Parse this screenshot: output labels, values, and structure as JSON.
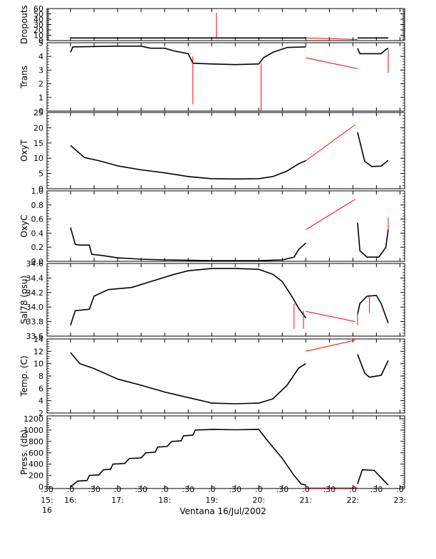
{
  "chart_data": {
    "type": "line",
    "xlabel": "Ventana 16/Jul/2002",
    "x_ticks": [
      {
        "t": 15.5,
        "top": ":30",
        "mid": "15:",
        "bot": "16"
      },
      {
        "t": 16.0,
        "top": ":0",
        "mid": "16:",
        "bot": ""
      },
      {
        "t": 16.5,
        "top": ":30",
        "mid": "",
        "bot": ""
      },
      {
        "t": 17.0,
        "top": ":0",
        "mid": "17:",
        "bot": ""
      },
      {
        "t": 17.5,
        "top": ":30",
        "mid": "",
        "bot": ""
      },
      {
        "t": 18.0,
        "top": ":0",
        "mid": "18:",
        "bot": ""
      },
      {
        "t": 18.5,
        "top": ":30",
        "mid": "",
        "bot": ""
      },
      {
        "t": 19.0,
        "top": ":0",
        "mid": "19:",
        "bot": ""
      },
      {
        "t": 19.5,
        "top": ":30",
        "mid": "",
        "bot": ""
      },
      {
        "t": 20.0,
        "top": ":0",
        "mid": "20:",
        "bot": ""
      },
      {
        "t": 20.5,
        "top": ":30",
        "mid": "",
        "bot": ""
      },
      {
        "t": 21.0,
        "top": ":0",
        "mid": "21:",
        "bot": ""
      },
      {
        "t": 21.5,
        "top": ":30",
        "mid": "",
        "bot": ""
      },
      {
        "t": 22.0,
        "top": ":0",
        "mid": "22:",
        "bot": ""
      },
      {
        "t": 22.5,
        "top": ":30",
        "mid": "",
        "bot": ""
      },
      {
        "t": 23.0,
        "top": ":0",
        "mid": "23:",
        "bot": ""
      }
    ],
    "xlim": [
      15.5,
      23.1
    ],
    "colors": {
      "data": "#000000",
      "interp": "#ff0000"
    },
    "panels": [
      {
        "id": "dropouts",
        "ylabel": "Dropouts",
        "ylim": [
          0,
          60
        ],
        "yticks": [
          0,
          10,
          20,
          30,
          40,
          50,
          60
        ],
        "segments": [
          [
            [
              16.0,
              5
            ],
            [
              21.0,
              5
            ]
          ],
          [
            [
              22.1,
              5
            ],
            [
              22.75,
              5
            ]
          ]
        ],
        "interp": [
          [
            [
              21.0,
              5
            ],
            [
              22.1,
              2
            ]
          ]
        ],
        "spikes": [
          [
            19.1,
            5,
            52
          ]
        ]
      },
      {
        "id": "trans",
        "ylabel": "Trans",
        "ylim": [
          0,
          5
        ],
        "yticks": [
          0,
          1,
          2,
          3,
          4,
          5
        ],
        "segments": [
          [
            [
              16.0,
              4.3
            ],
            [
              16.05,
              4.7
            ],
            [
              17.0,
              4.75
            ],
            [
              17.5,
              4.75
            ],
            [
              17.7,
              4.6
            ],
            [
              18.0,
              4.6
            ],
            [
              18.2,
              4.4
            ],
            [
              18.5,
              4.2
            ],
            [
              18.6,
              3.5
            ],
            [
              19.0,
              3.45
            ],
            [
              19.5,
              3.4
            ],
            [
              20.0,
              3.45
            ],
            [
              20.1,
              3.9
            ],
            [
              20.3,
              4.3
            ],
            [
              20.6,
              4.65
            ],
            [
              21.0,
              4.7
            ]
          ],
          [
            [
              22.1,
              4.6
            ],
            [
              22.15,
              4.2
            ],
            [
              22.6,
              4.2
            ],
            [
              22.7,
              4.5
            ],
            [
              22.75,
              4.6
            ]
          ]
        ],
        "interp": [
          [
            [
              21.0,
              3.9
            ],
            [
              22.1,
              3.1
            ]
          ]
        ],
        "spikes": [
          [
            18.6,
            4.0,
            0.5
          ],
          [
            20.05,
            3.5,
            0.0
          ],
          [
            22.75,
            4.5,
            2.8
          ]
        ]
      },
      {
        "id": "oxyt",
        "ylabel": "OxyT",
        "ylim": [
          0,
          25
        ],
        "yticks": [
          0,
          5,
          10,
          15,
          20,
          25
        ],
        "segments": [
          [
            [
              16.0,
              14.2
            ],
            [
              16.3,
              10.2
            ],
            [
              16.6,
              9.2
            ],
            [
              17.0,
              7.5
            ],
            [
              17.5,
              6.2
            ],
            [
              18.0,
              5.2
            ],
            [
              18.5,
              4.0
            ],
            [
              19.0,
              3.3
            ],
            [
              19.5,
              3.2
            ],
            [
              20.0,
              3.3
            ],
            [
              20.3,
              4.0
            ],
            [
              20.6,
              5.8
            ],
            [
              20.85,
              8.2
            ],
            [
              21.0,
              9.2
            ]
          ],
          [
            [
              22.1,
              18.5
            ],
            [
              22.25,
              9.0
            ],
            [
              22.4,
              7.3
            ],
            [
              22.6,
              7.4
            ],
            [
              22.75,
              9.3
            ]
          ]
        ],
        "interp": [
          [
            [
              21.0,
              9.2
            ],
            [
              22.05,
              21.0
            ]
          ]
        ],
        "spikes": []
      },
      {
        "id": "oxyc",
        "ylabel": "OxyC",
        "ylim": [
          0,
          1.0
        ],
        "yticks": [
          0.0,
          0.2,
          0.4,
          0.6,
          0.8,
          1.0
        ],
        "ytick_labels": [
          "0.0",
          "0.2",
          "0.4",
          "0.6",
          "0.8",
          "1.0"
        ],
        "segments": [
          [
            [
              16.0,
              0.48
            ],
            [
              16.1,
              0.24
            ],
            [
              16.2,
              0.23
            ],
            [
              16.4,
              0.23
            ],
            [
              16.45,
              0.1
            ],
            [
              16.7,
              0.08
            ],
            [
              17.0,
              0.05
            ],
            [
              17.5,
              0.03
            ],
            [
              18.0,
              0.02
            ],
            [
              19.0,
              0.01
            ],
            [
              20.0,
              0.01
            ],
            [
              20.5,
              0.02
            ],
            [
              20.75,
              0.06
            ],
            [
              20.85,
              0.17
            ],
            [
              21.0,
              0.26
            ]
          ],
          [
            [
              22.1,
              0.55
            ],
            [
              22.15,
              0.15
            ],
            [
              22.3,
              0.06
            ],
            [
              22.55,
              0.06
            ],
            [
              22.7,
              0.2
            ],
            [
              22.75,
              0.45
            ]
          ]
        ],
        "interp": [
          [
            [
              21.0,
              0.45
            ],
            [
              22.05,
              0.88
            ]
          ]
        ],
        "spikes": [
          [
            22.75,
            0.45,
            0.62
          ]
        ]
      },
      {
        "id": "sal78",
        "ylabel": "Sal78 (psu)",
        "ylim": [
          33.6,
          34.6
        ],
        "yticks": [
          33.6,
          33.8,
          34.0,
          34.2,
          34.4,
          34.6
        ],
        "ytick_labels": [
          "33.6",
          "33.8",
          "34.0",
          "34.2",
          "34.4",
          "34.6"
        ],
        "segments": [
          [
            [
              16.0,
              33.75
            ],
            [
              16.1,
              33.95
            ],
            [
              16.4,
              33.97
            ],
            [
              16.5,
              34.15
            ],
            [
              16.8,
              34.24
            ],
            [
              17.3,
              34.27
            ],
            [
              17.7,
              34.35
            ],
            [
              18.2,
              34.45
            ],
            [
              18.5,
              34.5
            ],
            [
              19.0,
              34.53
            ],
            [
              19.5,
              34.53
            ],
            [
              20.0,
              34.52
            ],
            [
              20.3,
              34.45
            ],
            [
              20.5,
              34.35
            ],
            [
              20.7,
              34.15
            ],
            [
              20.85,
              33.98
            ],
            [
              21.0,
              33.85
            ]
          ],
          [
            [
              22.1,
              33.9
            ],
            [
              22.15,
              34.05
            ],
            [
              22.3,
              34.15
            ],
            [
              22.5,
              34.16
            ],
            [
              22.6,
              34.05
            ],
            [
              22.75,
              33.78
            ]
          ]
        ],
        "interp": [
          [
            [
              21.0,
              33.94
            ],
            [
              22.05,
              33.8
            ]
          ]
        ],
        "spikes": [
          [
            20.75,
            34.05,
            33.7
          ],
          [
            20.95,
            33.95,
            33.7
          ],
          [
            22.35,
            34.17,
            33.92
          ],
          [
            22.1,
            33.92,
            33.75
          ]
        ]
      },
      {
        "id": "temp",
        "ylabel": "Temp. (C)",
        "ylim": [
          2,
          14
        ],
        "yticks": [
          2,
          4,
          6,
          8,
          10,
          12,
          14
        ],
        "segments": [
          [
            [
              16.0,
              11.8
            ],
            [
              16.2,
              10.0
            ],
            [
              16.5,
              9.2
            ],
            [
              17.0,
              7.5
            ],
            [
              17.5,
              6.5
            ],
            [
              18.0,
              5.4
            ],
            [
              18.5,
              4.5
            ],
            [
              18.9,
              3.8
            ],
            [
              19.0,
              3.6
            ],
            [
              19.5,
              3.5
            ],
            [
              20.0,
              3.6
            ],
            [
              20.3,
              4.3
            ],
            [
              20.6,
              6.5
            ],
            [
              20.85,
              9.3
            ],
            [
              21.0,
              10.0
            ]
          ],
          [
            [
              22.1,
              11.5
            ],
            [
              22.25,
              8.5
            ],
            [
              22.35,
              7.8
            ],
            [
              22.6,
              8.1
            ],
            [
              22.75,
              10.5
            ]
          ]
        ],
        "interp": [
          [
            [
              21.0,
              12.0
            ],
            [
              22.05,
              13.8
            ]
          ]
        ],
        "spikes": []
      },
      {
        "id": "press",
        "ylabel": "Press. (db)",
        "ylim": [
          -30,
          1250
        ],
        "yticks": [
          0,
          200,
          400,
          600,
          800,
          1000,
          1200
        ],
        "segments": [
          [
            [
              16.0,
              0
            ],
            [
              16.15,
              100
            ],
            [
              16.35,
              110
            ],
            [
              16.4,
              200
            ],
            [
              16.6,
              210
            ],
            [
              16.7,
              300
            ],
            [
              16.85,
              310
            ],
            [
              16.9,
              400
            ],
            [
              17.15,
              410
            ],
            [
              17.25,
              500
            ],
            [
              17.5,
              510
            ],
            [
              17.6,
              600
            ],
            [
              17.8,
              610
            ],
            [
              17.85,
              700
            ],
            [
              18.05,
              710
            ],
            [
              18.15,
              800
            ],
            [
              18.35,
              810
            ],
            [
              18.4,
              900
            ],
            [
              18.6,
              910
            ],
            [
              18.65,
              1000
            ],
            [
              19.0,
              1010
            ],
            [
              19.5,
              1005
            ],
            [
              20.0,
              1010
            ],
            [
              20.2,
              800
            ],
            [
              20.5,
              500
            ],
            [
              20.75,
              200
            ],
            [
              20.9,
              50
            ],
            [
              21.0,
              30
            ]
          ],
          [
            [
              22.1,
              50
            ],
            [
              22.2,
              300
            ],
            [
              22.45,
              290
            ],
            [
              22.75,
              30
            ]
          ]
        ],
        "interp": [
          [
            [
              21.0,
              -20
            ],
            [
              22.1,
              -20
            ]
          ]
        ],
        "spikes": []
      }
    ]
  }
}
